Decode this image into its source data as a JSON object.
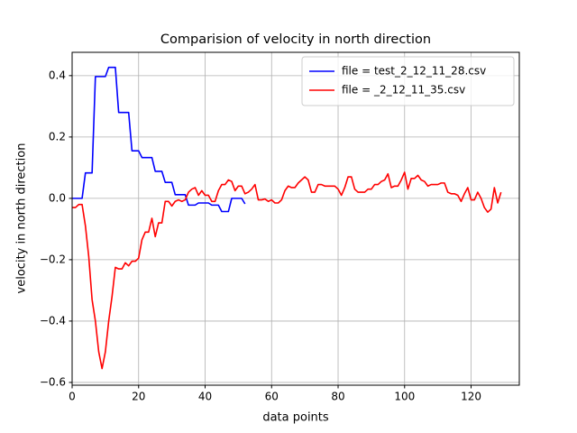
{
  "chart_data": {
    "type": "line",
    "title": "Comparision of velocity in north direction",
    "x_label": "data points",
    "y_label": "velocity in north direction",
    "xlim": [
      0,
      134.5
    ],
    "ylim": [
      -0.609,
      0.476
    ],
    "xticks": [
      0,
      20,
      40,
      60,
      80,
      100,
      120
    ],
    "yticks": [
      {
        "value": -0.6,
        "label": "−0.6"
      },
      {
        "value": -0.4,
        "label": "−0.4"
      },
      {
        "value": -0.2,
        "label": "−0.2"
      },
      {
        "value": 0,
        "label": "0.0"
      },
      0.2,
      0.4
    ],
    "grid": true,
    "legend": "upper right",
    "series": [
      {
        "name": "file = test_2_12_11_28.csv",
        "color": "#0000ff",
        "values": [
          0,
          0,
          0,
          0,
          0.083,
          0.083,
          0.083,
          0.397,
          0.397,
          0.397,
          0.397,
          0.427,
          0.427,
          0.427,
          0.28,
          0.28,
          0.28,
          0.28,
          0.155,
          0.155,
          0.155,
          0.133,
          0.133,
          0.133,
          0.133,
          0.088,
          0.088,
          0.088,
          0.052,
          0.052,
          0.052,
          0.012,
          0.012,
          0.012,
          0.012,
          -0.022,
          -0.022,
          -0.022,
          -0.015,
          -0.015,
          -0.015,
          -0.015,
          -0.022,
          -0.022,
          -0.022,
          -0.043,
          -0.043,
          -0.043,
          0,
          0,
          0,
          0,
          -0.018
        ]
      },
      {
        "name": "file = _2_12_11_35.csv",
        "color": "#ff0000",
        "values": [
          -0.03,
          -0.03,
          -0.02,
          -0.02,
          -0.09,
          -0.19,
          -0.33,
          -0.4,
          -0.5,
          -0.555,
          -0.5,
          -0.4,
          -0.32,
          -0.225,
          -0.23,
          -0.23,
          -0.21,
          -0.22,
          -0.205,
          -0.205,
          -0.195,
          -0.135,
          -0.11,
          -0.11,
          -0.065,
          -0.125,
          -0.08,
          -0.08,
          -0.01,
          -0.01,
          -0.025,
          -0.01,
          -0.005,
          -0.01,
          -0.005,
          0.02,
          0.03,
          0.035,
          0.01,
          0.025,
          0.01,
          0.01,
          -0.01,
          -0.01,
          0.025,
          0.045,
          0.045,
          0.06,
          0.055,
          0.025,
          0.04,
          0.04,
          0.015,
          0.02,
          0.03,
          0.045,
          -0.005,
          -0.005,
          -0.002,
          -0.01,
          -0.005,
          -0.015,
          -0.015,
          -0.005,
          0.025,
          0.04,
          0.035,
          0.035,
          0.05,
          0.06,
          0.07,
          0.06,
          0.02,
          0.02,
          0.045,
          0.045,
          0.04,
          0.04,
          0.04,
          0.04,
          0.03,
          0.01,
          0.035,
          0.07,
          0.07,
          0.03,
          0.02,
          0.02,
          0.02,
          0.03,
          0.03,
          0.045,
          0.045,
          0.055,
          0.06,
          0.08,
          0.035,
          0.04,
          0.04,
          0.06,
          0.085,
          0.03,
          0.065,
          0.065,
          0.075,
          0.06,
          0.055,
          0.04,
          0.045,
          0.045,
          0.045,
          0.05,
          0.05,
          0.02,
          0.015,
          0.015,
          0.01,
          -0.01,
          0.015,
          0.035,
          -0.005,
          -0.005,
          0.02,
          0,
          -0.03,
          -0.045,
          -0.035,
          0.035,
          -0.015,
          0.02
        ]
      }
    ]
  }
}
